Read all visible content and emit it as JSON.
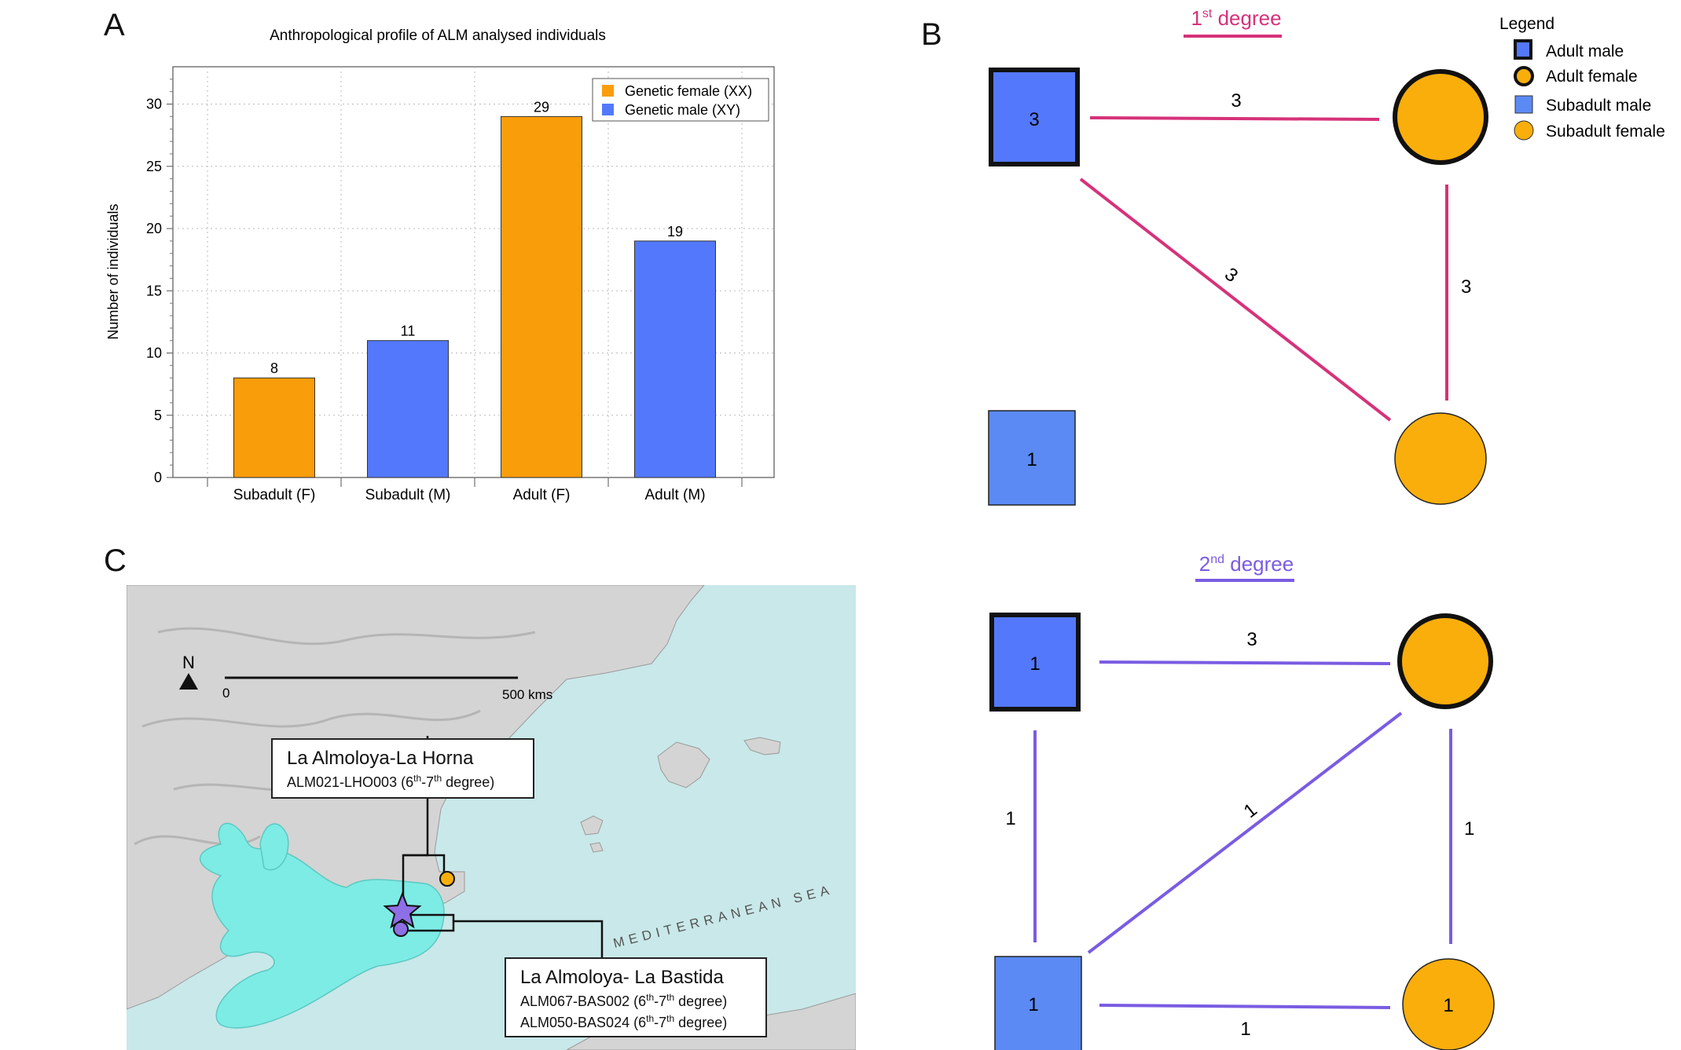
{
  "panels": {
    "a": "A",
    "b": "B",
    "c": "C"
  },
  "chart_data": {
    "type": "bar",
    "title": "Anthropological profile of ALM analysed individuals",
    "xlabel": "",
    "ylabel": "Number of individuals",
    "ylim": [
      0,
      33
    ],
    "yticks": [
      0,
      5,
      10,
      15,
      20,
      25,
      30
    ],
    "categories": [
      "Subadult (F)",
      "Subadult (M)",
      "Adult (F)",
      "Adult (M)"
    ],
    "values": [
      8,
      11,
      29,
      19
    ],
    "bar_sex": [
      "Genetic female (XX)",
      "Genetic male (XY)",
      "Genetic female (XX)",
      "Genetic male (XY)"
    ],
    "series": [
      {
        "name": "Genetic female (XX)",
        "color": "#f99d0b"
      },
      {
        "name": "Genetic male (XY)",
        "color": "#5478fb"
      }
    ],
    "grid": true,
    "legend_position": "top-right"
  },
  "kinship": {
    "legend": {
      "title": "Legend",
      "items": [
        {
          "label": "Adult male",
          "shape": "square",
          "bold": true,
          "color": "#5478fb"
        },
        {
          "label": "Adult female",
          "shape": "circle",
          "bold": true,
          "color": "#f9ae0b"
        },
        {
          "label": "Subadult male",
          "shape": "square",
          "bold": false,
          "color": "#5b8af5"
        },
        {
          "label": "Subadult female",
          "shape": "circle",
          "bold": false,
          "color": "#f9ae0b"
        }
      ]
    },
    "first": {
      "title_main": "1",
      "title_sup": "st",
      "title_rest": " degree",
      "color": "#d6327a",
      "nodes": {
        "adult_male": "3",
        "adult_female": "",
        "subadult_male": "1",
        "subadult_female": ""
      },
      "edges": {
        "top": "3",
        "diagonal": "3",
        "right": "3"
      }
    },
    "second": {
      "title_main": "2",
      "title_sup": "nd",
      "title_rest": " degree",
      "color": "#7a5ce2",
      "nodes": {
        "adult_male": "1",
        "adult_female": "",
        "subadult_male": "1",
        "subadult_female": "1"
      },
      "edges": {
        "top": "3",
        "left": "1",
        "diagonal": "1",
        "right": "1",
        "bottom": "1"
      }
    }
  },
  "map": {
    "north": "N",
    "scale_start": "0",
    "scale_end": "500 kms",
    "sea_label": "MEDITERRANEAN SEA",
    "site1": {
      "title": "La Almoloya-La Horna",
      "pair": "ALM021-LHO003",
      "deg_a": "6",
      "deg_a_sup": "th",
      "deg_b": "7",
      "deg_b_sup": "th",
      "deg_word": "degree"
    },
    "site2": {
      "title": "La Almoloya- La Bastida",
      "rows": [
        {
          "pair": "ALM067-BAS002",
          "deg_a": "6",
          "deg_a_sup": "th",
          "deg_b": "7",
          "deg_b_sup": "th",
          "deg_word": "degree"
        },
        {
          "pair": "ALM050-BAS024",
          "deg_a": "6",
          "deg_a_sup": "th",
          "deg_b": "7",
          "deg_b_sup": "th",
          "deg_word": "degree"
        }
      ]
    },
    "colors": {
      "sea": "#c9e8e9",
      "land": "#d4d4d4",
      "argaric": "#7dece4",
      "marker_orange": "#f9ae0b",
      "marker_purple": "#8e6fe6"
    }
  }
}
